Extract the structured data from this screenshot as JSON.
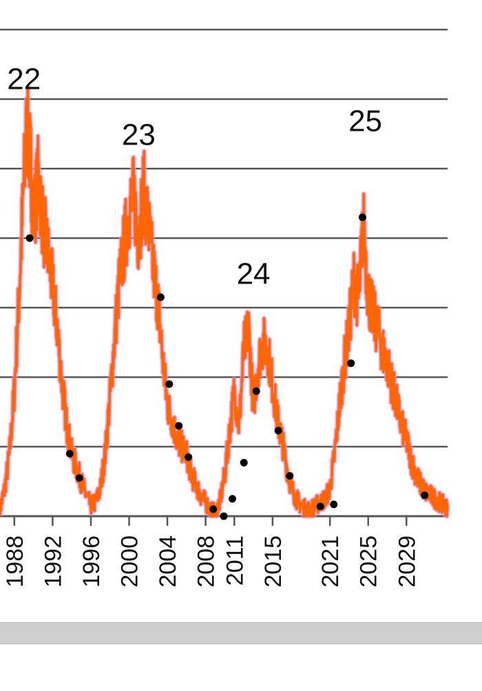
{
  "colors": {
    "series_line": "#ff6600",
    "series_glow": "#e28ae6",
    "smoothed_dots": "#000000",
    "gridline": "#555555",
    "axis": "#555555"
  },
  "chart_data": {
    "type": "line",
    "xlim": [
      1986.5,
      2033.3
    ],
    "ylim": [
      0,
      7
    ],
    "grid": true,
    "x_tick_labels": [
      "1988",
      "1992",
      "1996",
      "2000",
      "2004",
      "2008",
      "2011",
      "2015",
      "2021",
      "2025",
      "2029"
    ],
    "x_tick_values": [
      1988,
      1992,
      1996,
      2000,
      2004,
      2008,
      2011,
      2015,
      2021,
      2025,
      2029
    ],
    "annotations": [
      {
        "text": "22",
        "x": 1989,
        "y": 6.3
      },
      {
        "text": "23",
        "x": 2001,
        "y": 5.5
      },
      {
        "text": "24",
        "x": 2013,
        "y": 3.5
      },
      {
        "text": "25",
        "x": 2024.7,
        "y": 5.7
      }
    ],
    "series": [
      {
        "style": "noisy-line",
        "x": [
          1986.5,
          1987.0,
          1987.5,
          1988.0,
          1988.5,
          1989.0,
          1989.3,
          1989.7,
          1990.0,
          1990.5,
          1991.0,
          1991.5,
          1992.0,
          1992.5,
          1993.0,
          1993.5,
          1994.0,
          1994.5,
          1995.0,
          1995.5,
          1996.0,
          1996.5,
          1997.0,
          1997.5,
          1998.0,
          1998.5,
          1999.0,
          1999.5,
          2000.0,
          2000.5,
          2001.0,
          2001.5,
          2002.0,
          2002.5,
          2003.0,
          2003.5,
          2004.0,
          2004.5,
          2005.0,
          2005.5,
          2006.0,
          2006.5,
          2007.0,
          2007.5,
          2008.0,
          2008.5,
          2009.0,
          2009.5,
          2010.0,
          2010.5,
          2011.0,
          2011.5,
          2012.0,
          2012.5,
          2013.0,
          2013.5,
          2014.0,
          2014.5,
          2015.0,
          2015.5,
          2016.0,
          2016.5,
          2017.0,
          2017.5,
          2018.0,
          2018.5,
          2019.0,
          2019.5,
          2020.0,
          2020.5,
          2021.0,
          2021.5,
          2022.0,
          2022.5,
          2023.0,
          2023.5,
          2024.0,
          2024.5,
          2025.0,
          2025.5,
          2026.0,
          2026.5,
          2027.0,
          2027.5,
          2028.0,
          2028.5,
          2029.0,
          2029.5,
          2030.0,
          2030.5,
          2031.0,
          2031.5,
          2032.0,
          2032.5,
          2033.0,
          2033.3
        ],
        "y": [
          0.1,
          0.4,
          0.9,
          1.8,
          3.2,
          4.8,
          5.6,
          5.1,
          4.3,
          4.9,
          4.2,
          3.8,
          3.3,
          2.7,
          1.9,
          1.3,
          0.9,
          0.7,
          0.5,
          0.3,
          0.15,
          0.2,
          0.4,
          0.9,
          1.7,
          2.6,
          3.4,
          3.9,
          4.4,
          4.6,
          4.0,
          4.7,
          4.2,
          3.6,
          3.1,
          2.3,
          1.6,
          1.4,
          1.1,
          1.0,
          0.9,
          0.6,
          0.45,
          0.3,
          0.2,
          0.1,
          0.05,
          0.2,
          0.6,
          1.2,
          1.8,
          1.3,
          2.4,
          2.7,
          1.6,
          2.2,
          2.5,
          2.4,
          1.9,
          1.4,
          1.1,
          0.7,
          0.4,
          0.25,
          0.15,
          0.1,
          0.1,
          0.15,
          0.2,
          0.25,
          0.4,
          0.9,
          1.6,
          2.2,
          2.7,
          3.4,
          3.1,
          4.2,
          3.2,
          2.9,
          2.7,
          2.4,
          2.2,
          1.9,
          1.6,
          1.3,
          1.1,
          0.8,
          0.6,
          0.45,
          0.35,
          0.3,
          0.25,
          0.2,
          0.15,
          0.1
        ]
      },
      {
        "style": "dots",
        "x": [
          1989.6,
          1993.8,
          1994.8,
          2003.3,
          2004.2,
          2005.2,
          2006.2,
          2008.8,
          2009.9,
          2010.8,
          2012.0,
          2013.3,
          2015.6,
          2016.8,
          2020.0,
          2021.4,
          2023.2,
          2024.4,
          2030.9
        ],
        "y": [
          4.0,
          0.9,
          0.55,
          3.15,
          1.9,
          1.3,
          0.85,
          0.1,
          0.0,
          0.25,
          0.77,
          1.8,
          1.23,
          0.58,
          0.14,
          0.17,
          2.2,
          4.3,
          0.3
        ]
      }
    ]
  }
}
